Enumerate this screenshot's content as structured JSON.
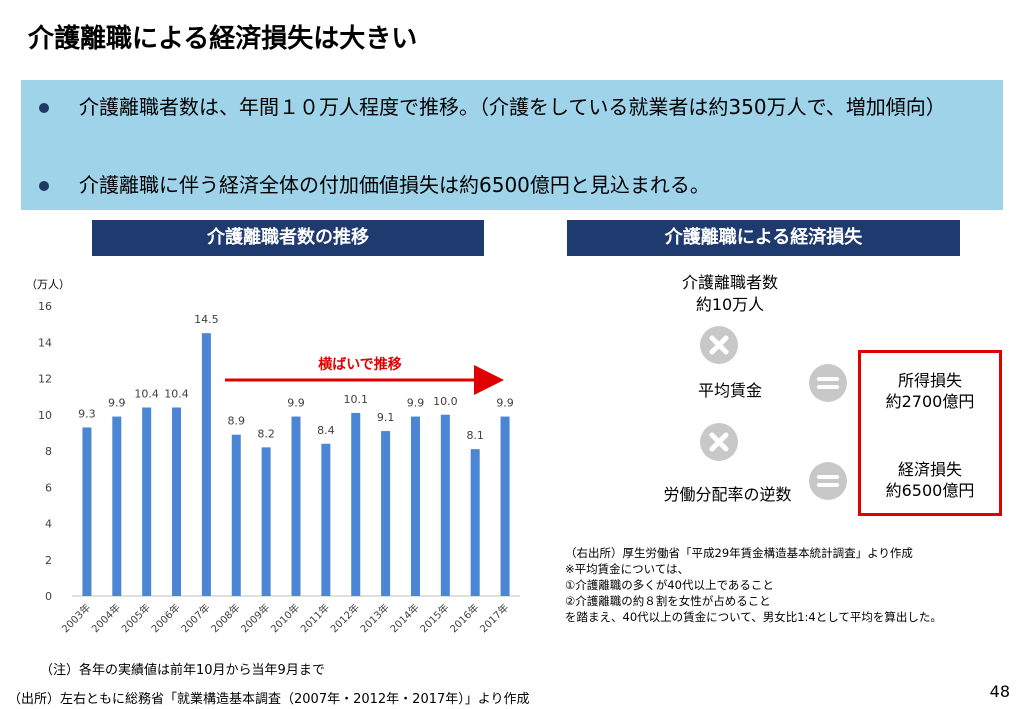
{
  "title": "介護離職による経済損失は大きい",
  "bullets": [
    "介護離職者数は、年間１０万人程度で推移。（介護をしている就業者は約350万人で、増加傾向）",
    "介護離職に伴う経済全体の付加価値損失は約6500億円と見込まれる。"
  ],
  "left_section": {
    "header": "介護離職者数の推移",
    "annotation": "横ばいで推移",
    "note": "（注）各年の実績値は前年10月から当年9月まで"
  },
  "chart_data": {
    "type": "bar",
    "ylabel": "（万人）",
    "ylim": [
      0,
      16
    ],
    "yticks": [
      0,
      2,
      4,
      6,
      8,
      10,
      12,
      14,
      16
    ],
    "categories": [
      "2003年",
      "2004年",
      "2005年",
      "2006年",
      "2007年",
      "2008年",
      "2009年",
      "2010年",
      "2011年",
      "2012年",
      "2013年",
      "2014年",
      "2015年",
      "2016年",
      "2017年"
    ],
    "values": [
      9.3,
      9.9,
      10.4,
      10.4,
      14.5,
      8.9,
      8.2,
      9.9,
      8.4,
      10.1,
      9.1,
      9.9,
      10.0,
      8.1,
      9.9
    ],
    "labels": [
      "9.3",
      "9.9",
      "10.4",
      "10.4",
      "14.5",
      "8.9",
      "8.2",
      "9.9",
      "8.4",
      "10.1",
      "9.1",
      "9.9",
      "10.0",
      "8.1",
      "9.9"
    ],
    "bar_color": "#4a86d4",
    "grid": false
  },
  "right_section": {
    "header": "介護離職による経済損失",
    "factor1_line1": "介護離職者数",
    "factor1_line2": "約10万人",
    "factor2": "平均賃金",
    "factor3": "労働分配率の逆数",
    "loss1_line1": "所得損失",
    "loss1_line2": "約2700億円",
    "loss2_line1": "経済損失",
    "loss2_line2": "約6500億円",
    "notes": [
      "（右出所）厚生労働省「平成29年賃金構造基本統計調査」より作成",
      "※平均賃金については、",
      "①介護離職の多くが40代以上であること",
      "②介護離職の約８割を女性が占めること",
      "を踏まえ、40代以上の賃金について、男女比1:4として平均を算出した。"
    ]
  },
  "source": "（出所）左右ともに総務省「就業構造基本調査（2007年・2012年・2017年）」より作成",
  "page_number": "48",
  "colors": {
    "header_bar": "#1f3a6e",
    "summary_bg": "#9fd3ea",
    "accent_red": "#e00000"
  }
}
